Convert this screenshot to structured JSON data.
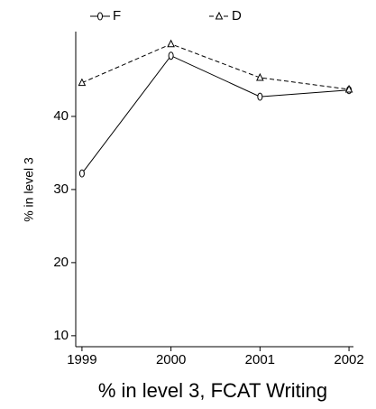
{
  "chart_data": {
    "type": "line",
    "title": "% in level 3, FCAT Writing",
    "y_label": "% in level 3",
    "x": [
      1999,
      2000,
      2001,
      2002
    ],
    "series": [
      {
        "name": "F",
        "color": "#000000",
        "dash": "solid",
        "marker": "diamond",
        "values": [
          32.2,
          48.3,
          42.7,
          43.6
        ]
      },
      {
        "name": "D",
        "color": "#000000",
        "dash": "dashed",
        "marker": "triangle",
        "values": [
          44.6,
          49.9,
          45.3,
          43.7
        ]
      }
    ],
    "xlim": [
      1998.93,
      2002.05
    ],
    "xticks": [
      1999,
      2000,
      2001,
      2002
    ],
    "ylim": [
      8.5,
      51.6
    ],
    "yticks": [
      10,
      20,
      30,
      40
    ],
    "grid": false,
    "legend": "top"
  }
}
